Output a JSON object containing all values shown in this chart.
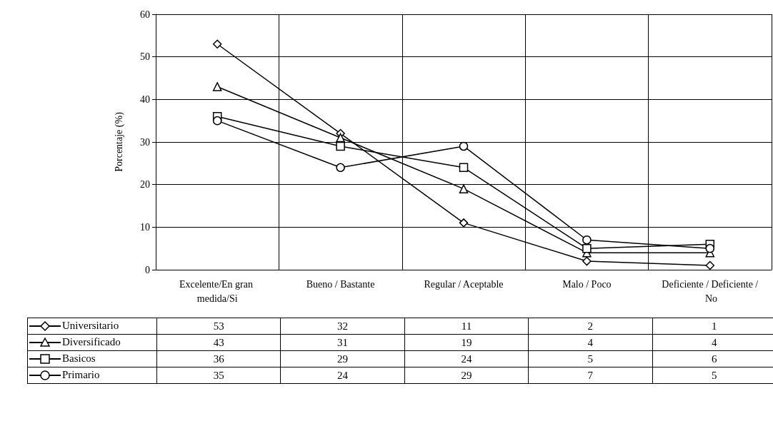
{
  "chart_data": {
    "type": "line",
    "ylabel": "Porcentaje (%)",
    "categories": [
      "Excelente/En gran medida/Si",
      "Bueno / Bastante",
      "Regular / Aceptable",
      "Malo / Poco",
      "Deficiente / Deficiente / No"
    ],
    "series": [
      {
        "name": "Universitario",
        "color": "#000000",
        "marker": "diamond",
        "values": [
          53,
          32,
          11,
          2,
          1
        ]
      },
      {
        "name": "Diversificado",
        "color": "#000000",
        "marker": "triangle",
        "values": [
          43,
          31,
          19,
          4,
          4
        ]
      },
      {
        "name": "Basicos",
        "color": "#000000",
        "marker": "square",
        "values": [
          36,
          29,
          24,
          5,
          6
        ]
      },
      {
        "name": "Primario",
        "color": "#000000",
        "marker": "circle",
        "values": [
          35,
          24,
          29,
          7,
          5
        ]
      }
    ],
    "ylim": [
      0,
      60
    ],
    "yticks": [
      0,
      10,
      20,
      30,
      40,
      50,
      60
    ],
    "grid": true,
    "legend": "bottom left",
    "data_labels": true,
    "line_style": "solid"
  }
}
